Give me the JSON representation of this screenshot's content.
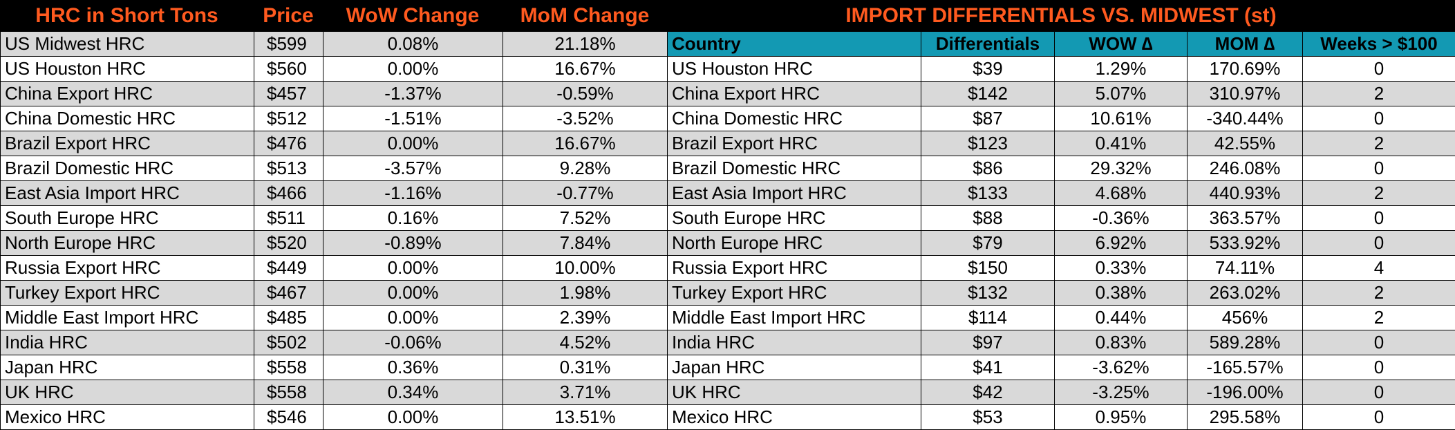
{
  "left": {
    "headers": [
      "HRC in Short Tons",
      "Price",
      "WoW Change",
      "MoM Change"
    ],
    "rows": [
      [
        "US Midwest HRC",
        "$599",
        "0.08%",
        "21.18%"
      ],
      [
        "US Houston HRC",
        "$560",
        "0.00%",
        "16.67%"
      ],
      [
        "China Export HRC",
        "$457",
        "-1.37%",
        "-0.59%"
      ],
      [
        "China Domestic HRC",
        "$512",
        "-1.51%",
        "-3.52%"
      ],
      [
        "Brazil Export HRC",
        "$476",
        "0.00%",
        "16.67%"
      ],
      [
        "Brazil Domestic HRC",
        "$513",
        "-3.57%",
        "9.28%"
      ],
      [
        "East Asia Import HRC",
        "$466",
        "-1.16%",
        "-0.77%"
      ],
      [
        "South Europe HRC",
        "$511",
        "0.16%",
        "7.52%"
      ],
      [
        "North Europe HRC",
        "$520",
        "-0.89%",
        "7.84%"
      ],
      [
        "Russia Export HRC",
        "$449",
        "0.00%",
        "10.00%"
      ],
      [
        "Turkey Export HRC",
        "$467",
        "0.00%",
        "1.98%"
      ],
      [
        "Middle East Import HRC",
        "$485",
        "0.00%",
        "2.39%"
      ],
      [
        "India HRC",
        "$502",
        "-0.06%",
        "4.52%"
      ],
      [
        "Japan HRC",
        "$558",
        "0.36%",
        "0.31%"
      ],
      [
        "UK HRC",
        "$558",
        "0.34%",
        "3.71%"
      ],
      [
        "Mexico HRC",
        "$546",
        "0.00%",
        "13.51%"
      ]
    ]
  },
  "right": {
    "title": "IMPORT DIFFERENTIALS VS. MIDWEST (st)",
    "headers": [
      "Country",
      "Differentials",
      "WOW ∆",
      "MOM ∆",
      "Weeks > $100"
    ],
    "rows": [
      [
        "US Houston HRC",
        "$39",
        "1.29%",
        "170.69%",
        "0"
      ],
      [
        "China Export HRC",
        "$142",
        "5.07%",
        "310.97%",
        "2"
      ],
      [
        "China Domestic HRC",
        "$87",
        "10.61%",
        "-340.44%",
        "0"
      ],
      [
        "Brazil Export HRC",
        "$123",
        "0.41%",
        "42.55%",
        "2"
      ],
      [
        "Brazil Domestic HRC",
        "$86",
        "29.32%",
        "246.08%",
        "0"
      ],
      [
        "East Asia Import HRC",
        "$133",
        "4.68%",
        "440.93%",
        "2"
      ],
      [
        "South Europe HRC",
        "$88",
        "-0.36%",
        "363.57%",
        "0"
      ],
      [
        "North Europe HRC",
        "$79",
        "6.92%",
        "533.92%",
        "0"
      ],
      [
        "Russia Export HRC",
        "$150",
        "0.33%",
        "74.11%",
        "4"
      ],
      [
        "Turkey Export HRC",
        "$132",
        "0.38%",
        "263.02%",
        "2"
      ],
      [
        "Middle East Import HRC",
        "$114",
        "0.44%",
        "456%",
        "2"
      ],
      [
        "India HRC",
        "$97",
        "0.83%",
        "589.28%",
        "0"
      ],
      [
        "Japan HRC",
        "$41",
        "-3.62%",
        "-165.57%",
        "0"
      ],
      [
        "UK HRC",
        "$42",
        "-3.25%",
        "-196.00%",
        "0"
      ],
      [
        "Mexico HRC",
        "$53",
        "0.95%",
        "295.58%",
        "0"
      ]
    ]
  },
  "colors": {
    "header_text": "#ff5a1f",
    "header_band": "#000000",
    "row_shade": "#d9d9d9",
    "row_plain": "#ffffff",
    "column_header_fill": "#1399b3"
  }
}
